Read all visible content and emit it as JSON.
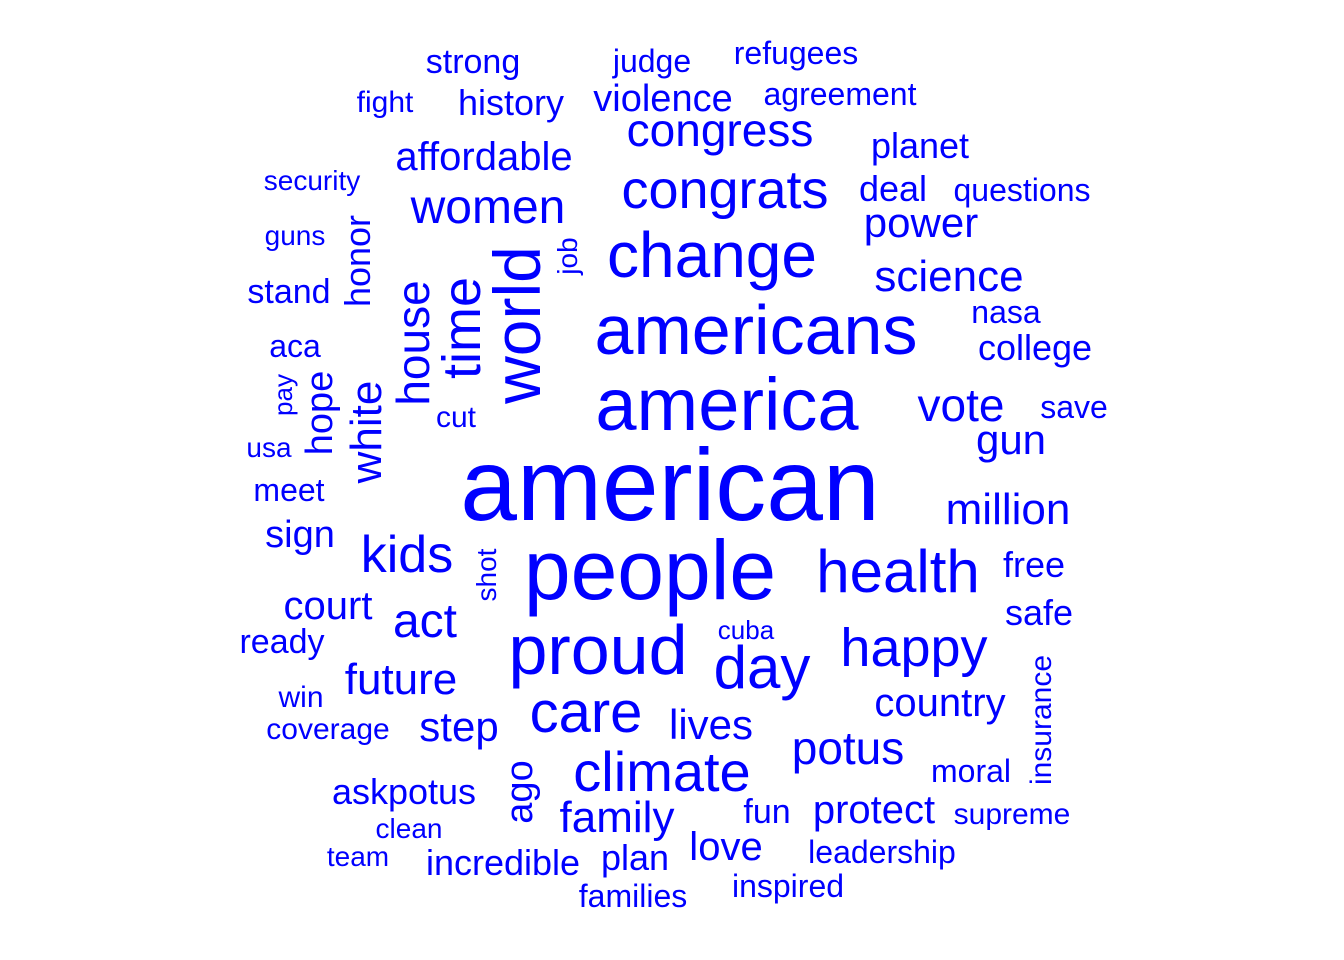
{
  "word_cloud": {
    "color": "#0000ff",
    "words": [
      "american",
      "people",
      "america",
      "americans",
      "proud",
      "change",
      "world",
      "congrats",
      "health",
      "day",
      "climate",
      "time",
      "care",
      "happy",
      "kids",
      "congress",
      "house",
      "women",
      "white",
      "potus",
      "science",
      "vote",
      "million",
      "act",
      "family",
      "future",
      "gun",
      "protect",
      "affordable",
      "power",
      "country",
      "lives",
      "step",
      "violence",
      "love",
      "court",
      "askpotus",
      "ago",
      "history",
      "incredible",
      "hope",
      "honor",
      "sign",
      "strong",
      "safe",
      "free",
      "plan",
      "college",
      "planet",
      "deal",
      "questions",
      "agreement",
      "judge",
      "refugees",
      "fun",
      "moral",
      "leadership",
      "families",
      "inspired",
      "nasa",
      "save",
      "ready",
      "insurance",
      "stand",
      "aca",
      "meet",
      "fight",
      "coverage",
      "supreme",
      "cut",
      "job",
      "shot",
      "security",
      "guns",
      "usa",
      "win",
      "clean",
      "team",
      "cuba",
      "pay"
    ]
  }
}
